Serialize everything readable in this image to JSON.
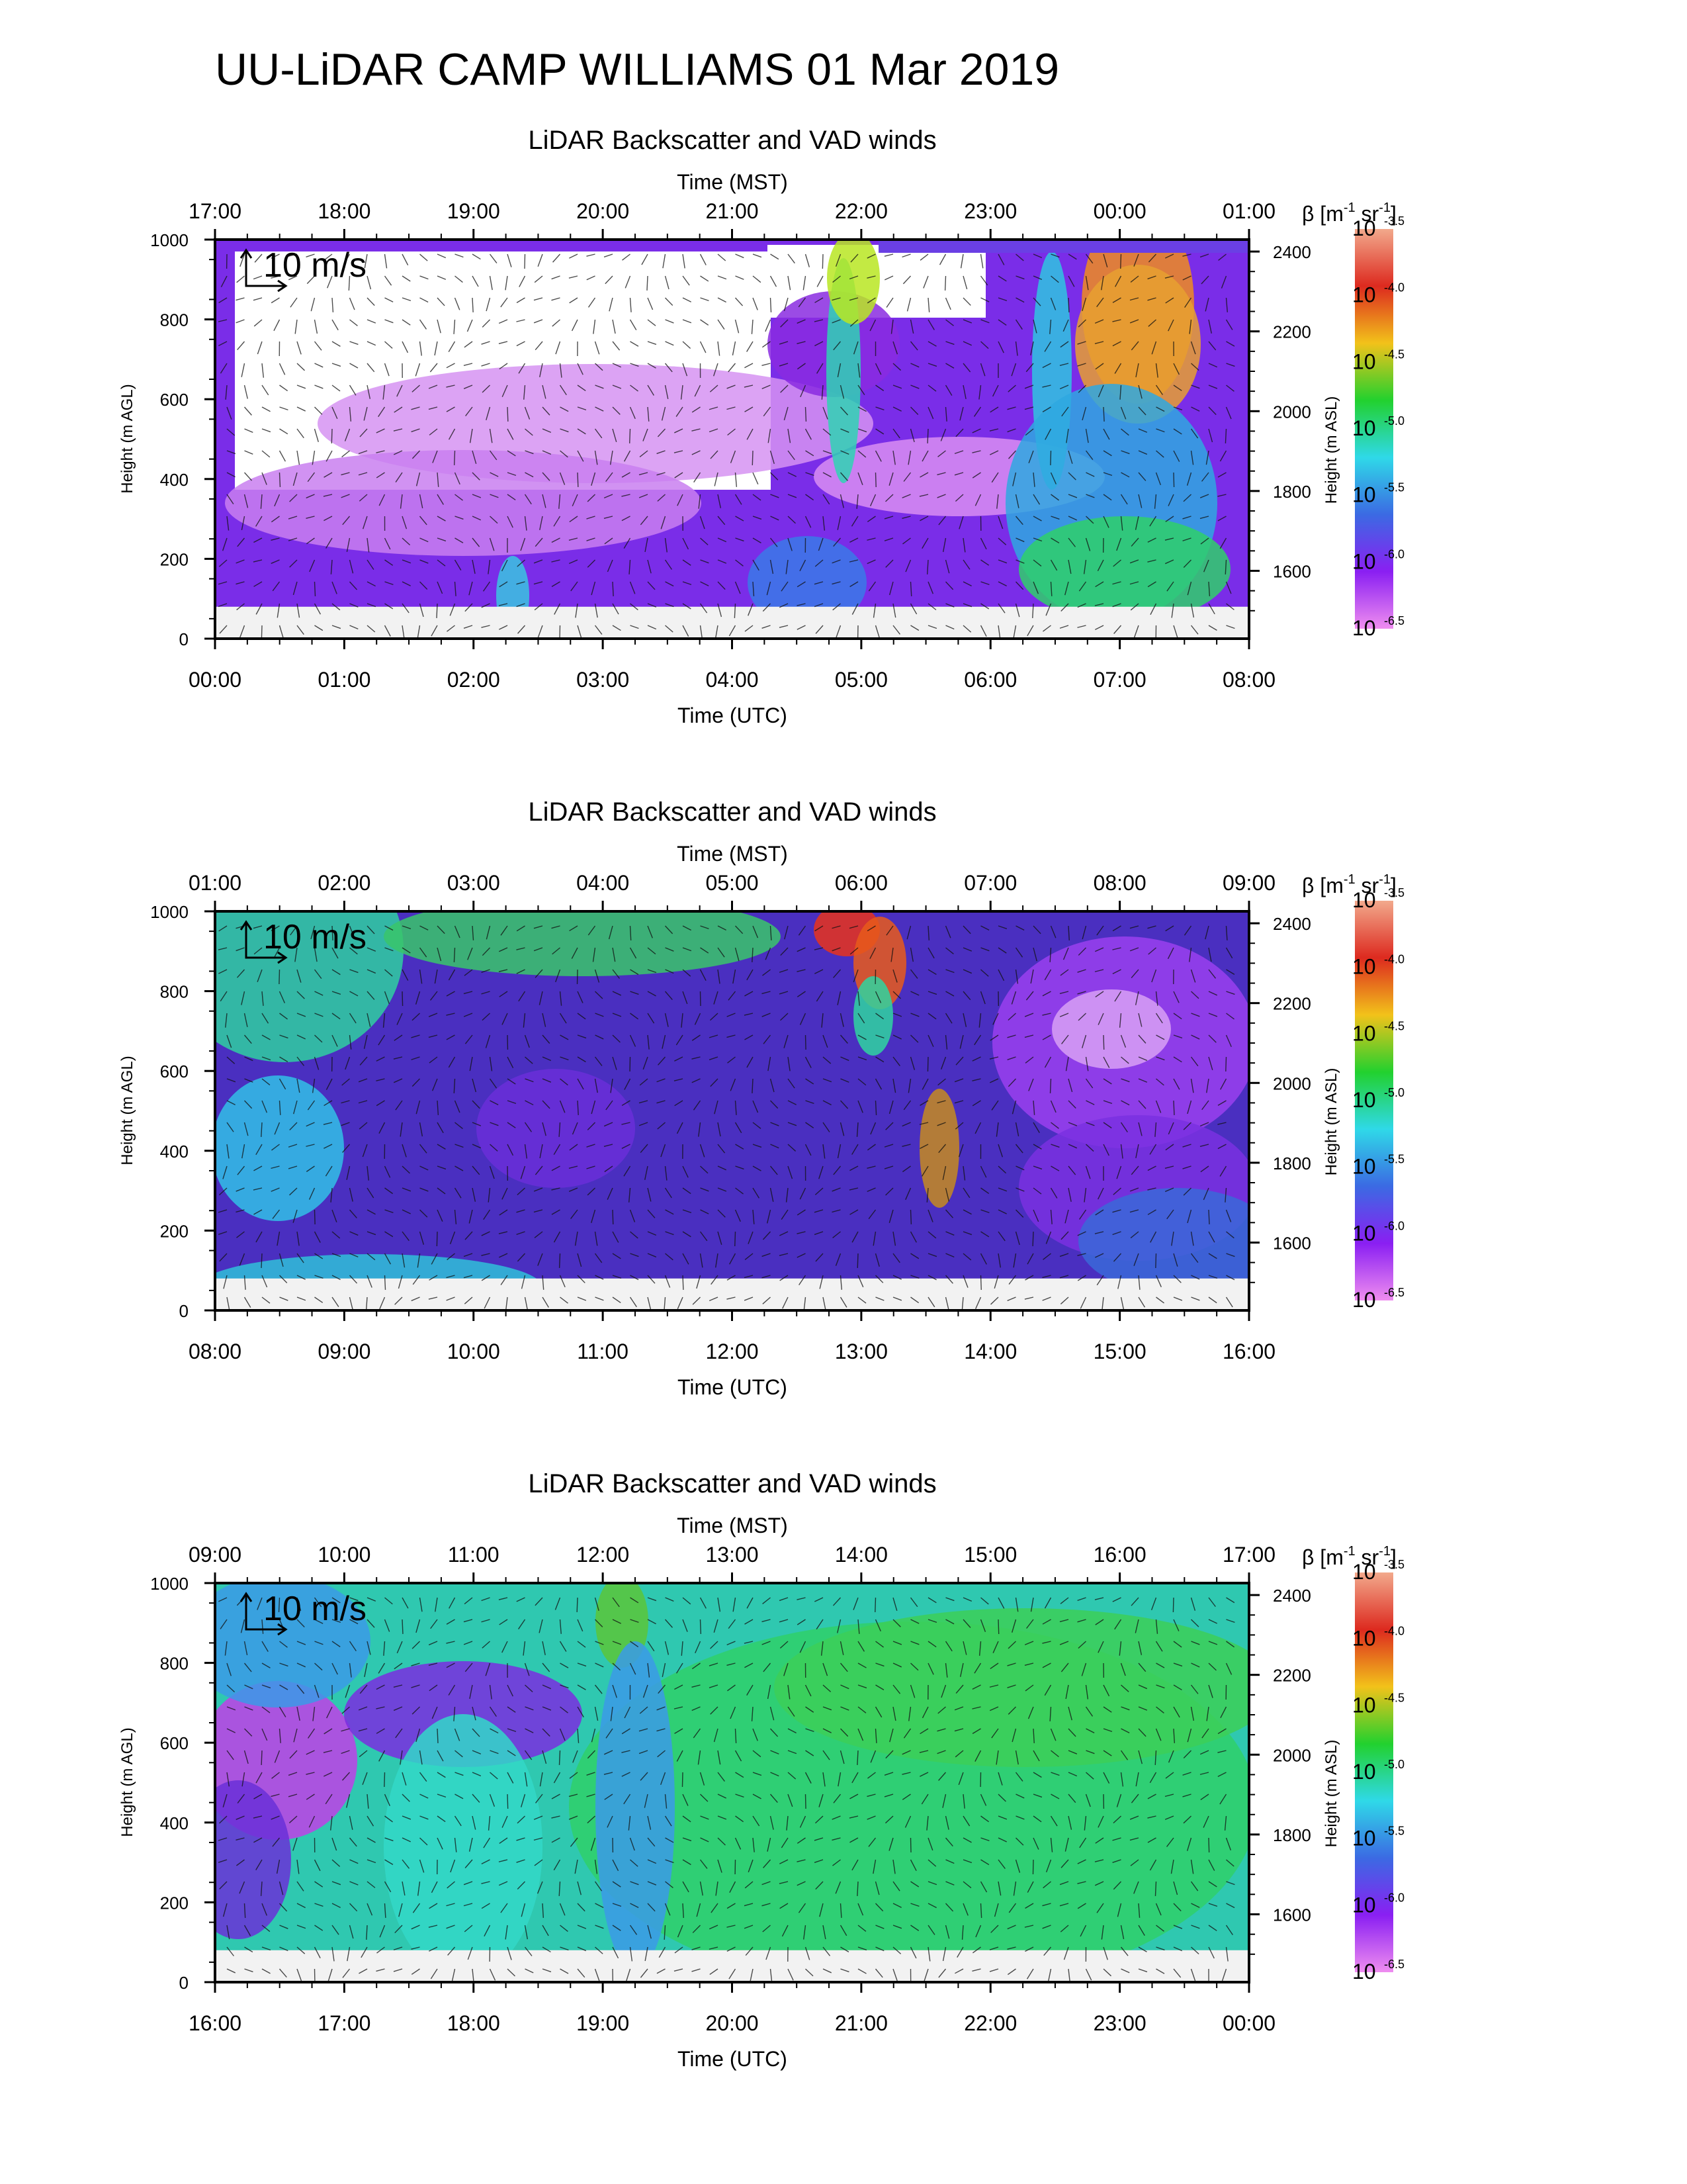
{
  "title": "UU-LiDAR CAMP WILLIAMS 01 Mar 2019",
  "colorbar": {
    "label_beta": "β",
    "label_unit": "[m",
    "label_sup1": "-1",
    "label_sr": " sr",
    "label_sup2": "-1",
    "label_close": "]",
    "base": "10",
    "exponents": [
      "-3.5",
      "-4.0",
      "-4.5",
      "-5.0",
      "-5.5",
      "-6.0",
      "-6.5"
    ],
    "colors": [
      "#f2a98c",
      "#dd2a1f",
      "#f2c21a",
      "#22d12e",
      "#2fd9e8",
      "#3b6ae3",
      "#8a1ff2",
      "#ef8df0"
    ]
  },
  "scale_arrow_label": "10 m/s",
  "chart_data": [
    {
      "type": "heatmap",
      "title": "LiDAR Backscatter and VAD winds",
      "xlabel_top": "Time (MST)",
      "xlabel_bottom": "Time (UTC)",
      "ylabel_left": "Height (m AGL)",
      "ylabel_right": "Height (m ASL)",
      "x_top_ticks": [
        "17:00",
        "18:00",
        "19:00",
        "20:00",
        "21:00",
        "22:00",
        "23:00",
        "00:00",
        "01:00"
      ],
      "x_bottom_ticks": [
        "00:00",
        "01:00",
        "02:00",
        "03:00",
        "04:00",
        "05:00",
        "06:00",
        "07:00",
        "08:00"
      ],
      "y_left_ticks": [
        0,
        200,
        400,
        600,
        800,
        1000
      ],
      "y_right_ticks": [
        1600,
        1800,
        2000,
        2200,
        2400
      ],
      "ylim": [
        0,
        1000
      ]
    },
    {
      "type": "heatmap",
      "title": "LiDAR Backscatter and VAD winds",
      "xlabel_top": "Time (MST)",
      "xlabel_bottom": "Time (UTC)",
      "ylabel_left": "Height (m AGL)",
      "ylabel_right": "Height (m ASL)",
      "x_top_ticks": [
        "01:00",
        "02:00",
        "03:00",
        "04:00",
        "05:00",
        "06:00",
        "07:00",
        "08:00",
        "09:00"
      ],
      "x_bottom_ticks": [
        "08:00",
        "09:00",
        "10:00",
        "11:00",
        "12:00",
        "13:00",
        "14:00",
        "15:00",
        "16:00"
      ],
      "y_left_ticks": [
        0,
        200,
        400,
        600,
        800,
        1000
      ],
      "y_right_ticks": [
        1600,
        1800,
        2000,
        2200,
        2400
      ],
      "ylim": [
        0,
        1000
      ]
    },
    {
      "type": "heatmap",
      "title": "LiDAR Backscatter and VAD winds",
      "xlabel_top": "Time (MST)",
      "xlabel_bottom": "Time (UTC)",
      "ylabel_left": "Height (m AGL)",
      "ylabel_right": "Height (m ASL)",
      "x_top_ticks": [
        "09:00",
        "10:00",
        "11:00",
        "12:00",
        "13:00",
        "14:00",
        "15:00",
        "16:00",
        "17:00"
      ],
      "x_bottom_ticks": [
        "16:00",
        "17:00",
        "18:00",
        "19:00",
        "20:00",
        "21:00",
        "22:00",
        "23:00",
        "00:00"
      ],
      "y_left_ticks": [
        0,
        200,
        400,
        600,
        800,
        1000
      ],
      "y_right_ticks": [
        1600,
        1800,
        2000,
        2200,
        2400
      ],
      "ylim": [
        0,
        1000
      ]
    }
  ]
}
